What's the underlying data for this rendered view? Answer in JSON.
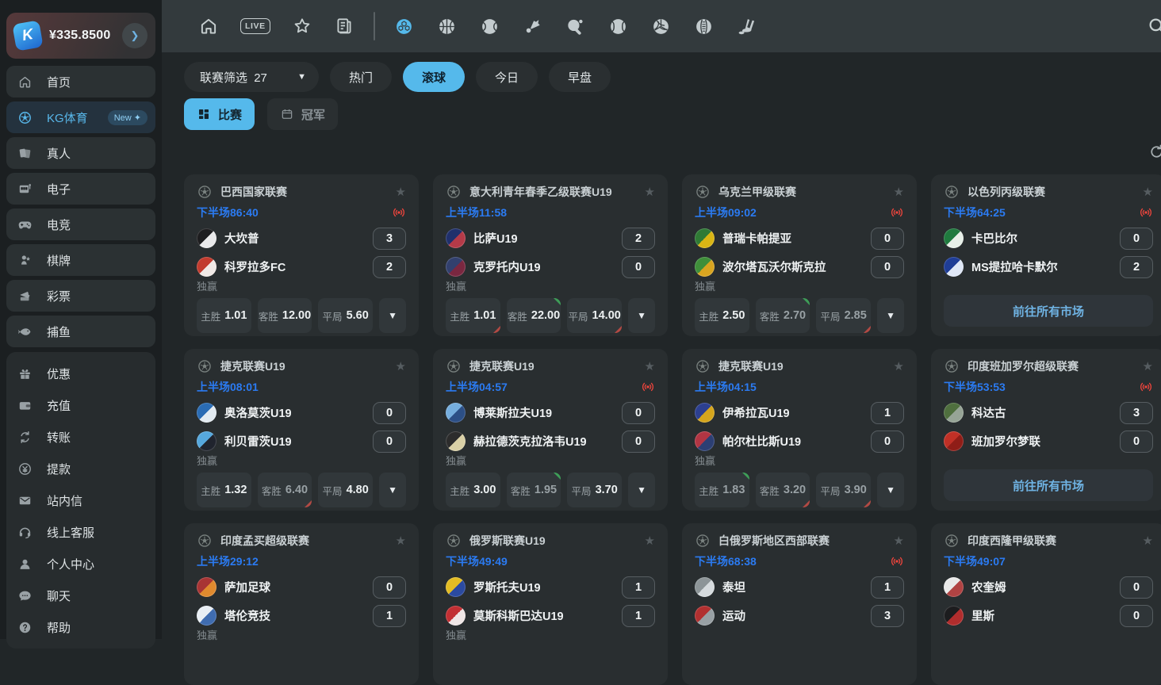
{
  "colors": {
    "accent": "#55B9EB",
    "time_blue": "#2B7BF2",
    "live_red": "#E8443C",
    "trend_up": "#3E9E58",
    "trend_down": "#B34A44"
  },
  "sidebar": {
    "logo_text": "K",
    "balance": "¥335.8500",
    "main_items": [
      {
        "icon": "home",
        "label": "首页"
      },
      {
        "icon": "soccer",
        "label": "KG体育",
        "active": true,
        "badge": "New ✦"
      },
      {
        "icon": "cards",
        "label": "真人"
      },
      {
        "icon": "slot",
        "label": "电子"
      },
      {
        "icon": "gamepad",
        "label": "电竞"
      },
      {
        "icon": "chess",
        "label": "棋牌"
      },
      {
        "icon": "ticket",
        "label": "彩票"
      },
      {
        "icon": "fish",
        "label": "捕鱼"
      }
    ],
    "secondary_items": [
      {
        "icon": "gift",
        "label": "优惠"
      },
      {
        "icon": "wallet",
        "label": "充值"
      },
      {
        "icon": "transfer",
        "label": "转账"
      },
      {
        "icon": "withdraw",
        "label": "提款"
      },
      {
        "icon": "mail",
        "label": "站内信"
      },
      {
        "icon": "headset",
        "label": "线上客服"
      },
      {
        "icon": "user",
        "label": "个人中心"
      },
      {
        "icon": "chat",
        "label": "聊天"
      },
      {
        "icon": "help",
        "label": "帮助"
      }
    ]
  },
  "topbar": {
    "live_label": "LIVE",
    "sports": [
      {
        "icon": "handball",
        "active": true
      },
      {
        "icon": "basketball"
      },
      {
        "icon": "tennis"
      },
      {
        "icon": "badminton"
      },
      {
        "icon": "tabletennis"
      },
      {
        "icon": "baseball"
      },
      {
        "icon": "volleyball"
      },
      {
        "icon": "cricket"
      },
      {
        "icon": "hockey"
      }
    ]
  },
  "filters": {
    "league_filter": {
      "label": "联赛筛选",
      "count": "27"
    },
    "tabs": [
      {
        "label": "热门"
      },
      {
        "label": "滚球",
        "active": true
      },
      {
        "label": "今日"
      },
      {
        "label": "早盘"
      }
    ],
    "view_tabs": [
      {
        "label": "比赛",
        "icon": "grid",
        "active": true
      },
      {
        "label": "冠军",
        "icon": "calendar"
      }
    ]
  },
  "matches": [
    {
      "league": "巴西国家联赛",
      "time": "下半场86:40",
      "live": true,
      "market_label": "独赢",
      "more": true,
      "teams": [
        {
          "name": "大坎普",
          "score": "3",
          "colors": [
            "#1d1d1f",
            "#e9e9ea"
          ]
        },
        {
          "name": "科罗拉多FC",
          "score": "2",
          "colors": [
            "#c23b2e",
            "#f0e9e6"
          ]
        }
      ],
      "odds": [
        {
          "label": "主胜",
          "value": "1.01"
        },
        {
          "label": "客胜",
          "value": "12.00"
        },
        {
          "label": "平局",
          "value": "5.60"
        }
      ]
    },
    {
      "league": "意大利青年春季乙级联赛U19",
      "time": "上半场11:58",
      "market_label": "独赢",
      "more": true,
      "teams": [
        {
          "name": "比萨U19",
          "score": "2",
          "colors": [
            "#20306c",
            "#b43a48"
          ]
        },
        {
          "name": "克罗托内U19",
          "score": "0",
          "colors": [
            "#32406e",
            "#7a2740"
          ]
        }
      ],
      "odds": [
        {
          "label": "主胜",
          "value": "1.01",
          "down": true
        },
        {
          "label": "客胜",
          "value": "22.00",
          "up": true
        },
        {
          "label": "平局",
          "value": "14.00",
          "down": true
        }
      ]
    },
    {
      "league": "乌克兰甲级联赛",
      "time": "上半场09:02",
      "live": true,
      "market_label": "独赢",
      "more": true,
      "teams": [
        {
          "name": "普瑞卡帕提亚",
          "score": "0",
          "colors": [
            "#2f7a35",
            "#d9b514"
          ]
        },
        {
          "name": "波尔塔瓦沃尔斯克拉",
          "score": "0",
          "colors": [
            "#3f8f3a",
            "#d9a520"
          ]
        }
      ],
      "odds": [
        {
          "label": "主胜",
          "value": "2.50"
        },
        {
          "label": "客胜",
          "value": "2.70",
          "up": true,
          "dim": true
        },
        {
          "label": "平局",
          "value": "2.85",
          "down": true,
          "dim": true
        }
      ]
    },
    {
      "league": "以色列丙级联赛",
      "time": "下半场64:25",
      "live": true,
      "all_markets": "前往所有市场",
      "teams": [
        {
          "name": "卡巴比尔",
          "score": "0",
          "colors": [
            "#1f7a3e",
            "#e7efe8"
          ]
        },
        {
          "name": "MS提拉哈卡默尔",
          "score": "2",
          "colors": [
            "#1f3d96",
            "#dfe7f6"
          ]
        }
      ]
    },
    {
      "league": "捷克联赛U19",
      "time": "上半场08:01",
      "market_label": "独赢",
      "more": true,
      "teams": [
        {
          "name": "奥洛莫茨U19",
          "score": "0",
          "colors": [
            "#2a6cb4",
            "#e3ebf1"
          ]
        },
        {
          "name": "利贝雷茨U19",
          "score": "0",
          "colors": [
            "#56a8dd",
            "#20242e"
          ]
        }
      ],
      "odds": [
        {
          "label": "主胜",
          "value": "1.32"
        },
        {
          "label": "客胜",
          "value": "6.40",
          "down": true,
          "dim": true
        },
        {
          "label": "平局",
          "value": "4.80"
        }
      ]
    },
    {
      "league": "捷克联赛U19",
      "time": "上半场04:57",
      "live": true,
      "market_label": "独赢",
      "more": true,
      "teams": [
        {
          "name": "博莱斯拉夫U19",
          "score": "0",
          "colors": [
            "#76aede",
            "#2c4f86"
          ]
        },
        {
          "name": "赫拉德茨克拉洛韦U19",
          "score": "0",
          "colors": [
            "#2c2c2c",
            "#d9d0a6"
          ]
        }
      ],
      "odds": [
        {
          "label": "主胜",
          "value": "3.00"
        },
        {
          "label": "客胜",
          "value": "1.95",
          "up": true,
          "dim": true
        },
        {
          "label": "平局",
          "value": "3.70"
        }
      ]
    },
    {
      "league": "捷克联赛U19",
      "time": "上半场04:15",
      "market_label": "独赢",
      "more": true,
      "teams": [
        {
          "name": "伊希拉瓦U19",
          "score": "1",
          "colors": [
            "#2c3f90",
            "#d5a51c"
          ]
        },
        {
          "name": "帕尔杜比斯U19",
          "score": "0",
          "colors": [
            "#b23543",
            "#2c3f74"
          ]
        }
      ],
      "odds": [
        {
          "label": "主胜",
          "value": "1.83",
          "up": true,
          "dim": true
        },
        {
          "label": "客胜",
          "value": "3.20",
          "down": true,
          "dim": true
        },
        {
          "label": "平局",
          "value": "3.90",
          "down": true,
          "dim": true
        }
      ]
    },
    {
      "league": "印度班加罗尔超级联赛",
      "time": "下半场53:53",
      "live": true,
      "all_markets": "前往所有市场",
      "teams": [
        {
          "name": "科达古",
          "score": "3",
          "colors": [
            "#4f6f3e",
            "#96a496"
          ]
        },
        {
          "name": "班加罗尔梦联",
          "score": "0",
          "colors": [
            "#c03026",
            "#8f1d17"
          ]
        }
      ]
    },
    {
      "league": "印度孟买超级联赛",
      "time": "上半场29:12",
      "market_label": "独赢",
      "teams": [
        {
          "name": "萨加足球",
          "score": "0",
          "colors": [
            "#a83434",
            "#e08a2e"
          ]
        },
        {
          "name": "塔伦竞技",
          "score": "1",
          "colors": [
            "#e8eef4",
            "#3f6cb0"
          ]
        }
      ],
      "odds": []
    },
    {
      "league": "俄罗斯联赛U19",
      "time": "下半场49:49",
      "market_label": "独赢",
      "teams": [
        {
          "name": "罗斯托夫U19",
          "score": "1",
          "colors": [
            "#e3bc23",
            "#2b4aa0"
          ]
        },
        {
          "name": "莫斯科斯巴达U19",
          "score": "1",
          "colors": [
            "#c22f33",
            "#efe6e6"
          ]
        }
      ],
      "odds": []
    },
    {
      "league": "白俄罗斯地区西部联赛",
      "time": "下半场68:38",
      "live": true,
      "teams": [
        {
          "name": "泰坦",
          "score": "1",
          "colors": [
            "#8d9598",
            "#d6dbde"
          ]
        },
        {
          "name": "运动",
          "score": "3",
          "colors": [
            "#b23030",
            "#98a0a4"
          ]
        }
      ]
    },
    {
      "league": "印度西隆甲级联赛",
      "time": "下半场49:07",
      "teams": [
        {
          "name": "农奎姆",
          "score": "0",
          "colors": [
            "#e9e9e9",
            "#b04343"
          ]
        },
        {
          "name": "里斯",
          "score": "0",
          "colors": [
            "#1c1c1e",
            "#b02d2d"
          ]
        }
      ]
    }
  ]
}
